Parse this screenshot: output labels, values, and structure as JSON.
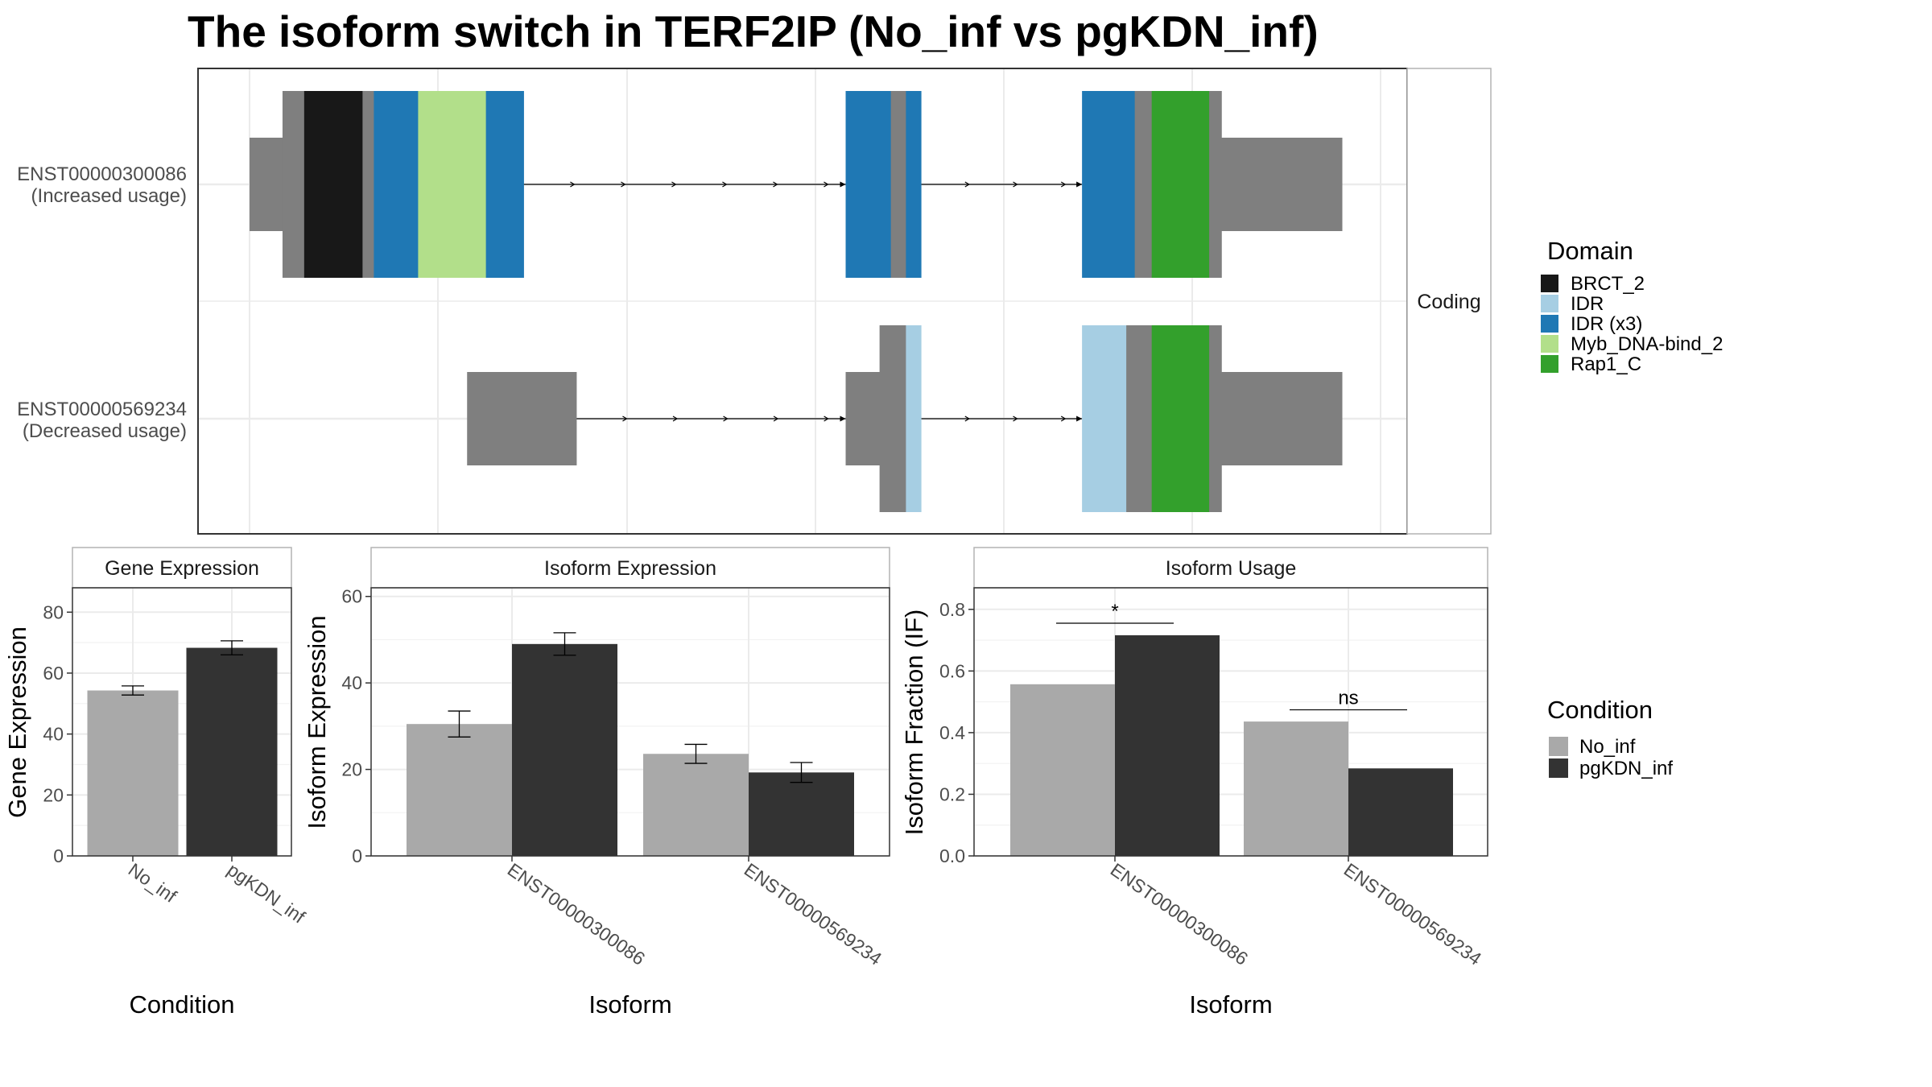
{
  "title": "The isoform switch in TERF2IP (No_inf vs pgKDN_inf)",
  "colors": {
    "No_inf": "#a9a9a9",
    "pgKDN_inf": "#333333",
    "utr_grey": "#7f7f7f",
    "BRCT_2": "#181818",
    "IDR": "#a6cee3",
    "IDR (x3)": "#1f78b4",
    "Myb_DNA-bind_2": "#b2df8a",
    "Rap1_C": "#33a02c"
  },
  "chart_data": [
    {
      "type": "isoform_structure",
      "title": "The isoform switch in TERF2IP (No_inf vs pgKDN_inf)",
      "facet_label": "Coding",
      "isoforms": [
        {
          "id": "ENST00000300086",
          "label_line1": "ENST00000300086",
          "label_line2": "(Increased usage)",
          "segments": [
            {
              "start": 0,
              "end": 35,
              "kind": "utr"
            },
            {
              "start": 35,
              "end": 58,
              "kind": "cds"
            },
            {
              "start": 58,
              "end": 120,
              "kind": "domain",
              "domain": "BRCT_2"
            },
            {
              "start": 120,
              "end": 132,
              "kind": "cds"
            },
            {
              "start": 132,
              "end": 179,
              "kind": "domain",
              "domain": "IDR (x3)"
            },
            {
              "start": 179,
              "end": 251,
              "kind": "domain",
              "domain": "Myb_DNA-bind_2"
            },
            {
              "start": 251,
              "end": 291,
              "kind": "domain",
              "domain": "IDR (x3)"
            },
            {
              "start": 633,
              "end": 681,
              "kind": "domain",
              "domain": "IDR (x3)"
            },
            {
              "start": 681,
              "end": 697,
              "kind": "cds"
            },
            {
              "start": 697,
              "end": 713,
              "kind": "domain",
              "domain": "IDR (x3)"
            },
            {
              "start": 884,
              "end": 940,
              "kind": "domain",
              "domain": "IDR (x3)"
            },
            {
              "start": 940,
              "end": 958,
              "kind": "cds"
            },
            {
              "start": 958,
              "end": 1019,
              "kind": "domain",
              "domain": "Rap1_C"
            },
            {
              "start": 1019,
              "end": 1032,
              "kind": "cds"
            },
            {
              "start": 1032,
              "end": 1160,
              "kind": "utr"
            }
          ],
          "introns": [
            [
              291,
              633
            ],
            [
              713,
              884
            ]
          ]
        },
        {
          "id": "ENST00000569234",
          "label_line1": "ENST00000569234",
          "label_line2": "(Decreased usage)",
          "segments": [
            {
              "start": 231,
              "end": 347,
              "kind": "utr"
            },
            {
              "start": 633,
              "end": 669,
              "kind": "utr"
            },
            {
              "start": 669,
              "end": 697,
              "kind": "cds"
            },
            {
              "start": 697,
              "end": 713,
              "kind": "domain",
              "domain": "IDR"
            },
            {
              "start": 884,
              "end": 931,
              "kind": "domain",
              "domain": "IDR"
            },
            {
              "start": 931,
              "end": 958,
              "kind": "cds"
            },
            {
              "start": 958,
              "end": 1019,
              "kind": "domain",
              "domain": "Rap1_C"
            },
            {
              "start": 1019,
              "end": 1032,
              "kind": "cds"
            },
            {
              "start": 1032,
              "end": 1160,
              "kind": "utr"
            }
          ],
          "introns": [
            [
              347,
              633
            ],
            [
              713,
              884
            ]
          ]
        }
      ],
      "legend": {
        "title": "Domain",
        "entries": [
          "BRCT_2",
          "IDR",
          "IDR (x3)",
          "Myb_DNA-bind_2",
          "Rap1_C"
        ]
      }
    },
    {
      "type": "bar",
      "panel_title": "Gene Expression",
      "xlabel": "Condition",
      "ylabel": "Gene Expression",
      "ylim": [
        0,
        88
      ],
      "yticks": [
        0,
        20,
        40,
        60,
        80
      ],
      "categories": [
        "No_inf",
        "pgKDN_inf"
      ],
      "values": [
        54.3,
        68.3
      ],
      "errors": [
        1.5,
        2.3
      ],
      "grid": true
    },
    {
      "type": "bar",
      "panel_title": "Isoform Expression",
      "xlabel": "Isoform",
      "ylabel": "Isoform Expression",
      "ylim": [
        0,
        62
      ],
      "yticks": [
        0,
        20,
        40,
        60
      ],
      "categories": [
        "ENST00000300086",
        "ENST00000569234"
      ],
      "series": [
        {
          "name": "No_inf",
          "values": [
            30.5,
            23.6
          ],
          "errors": [
            3.0,
            2.2
          ]
        },
        {
          "name": "pgKDN_inf",
          "values": [
            49.0,
            19.3
          ],
          "errors": [
            2.6,
            2.3
          ]
        }
      ],
      "grid": true
    },
    {
      "type": "bar",
      "panel_title": "Isoform Usage",
      "xlabel": "Isoform",
      "ylabel": "Isoform Fraction (IF)",
      "ylim": [
        0,
        0.87
      ],
      "yticks": [
        0.0,
        0.2,
        0.4,
        0.6,
        0.8
      ],
      "categories": [
        "ENST00000300086",
        "ENST00000569234"
      ],
      "series": [
        {
          "name": "No_inf",
          "values": [
            0.557,
            0.436
          ]
        },
        {
          "name": "pgKDN_inf",
          "values": [
            0.716,
            0.284
          ]
        }
      ],
      "significance": [
        {
          "label": "*",
          "y": 0.755
        },
        {
          "label": "ns",
          "y": 0.474
        }
      ],
      "grid": true,
      "legend": {
        "title": "Condition",
        "entries": [
          "No_inf",
          "pgKDN_inf"
        ]
      }
    }
  ]
}
